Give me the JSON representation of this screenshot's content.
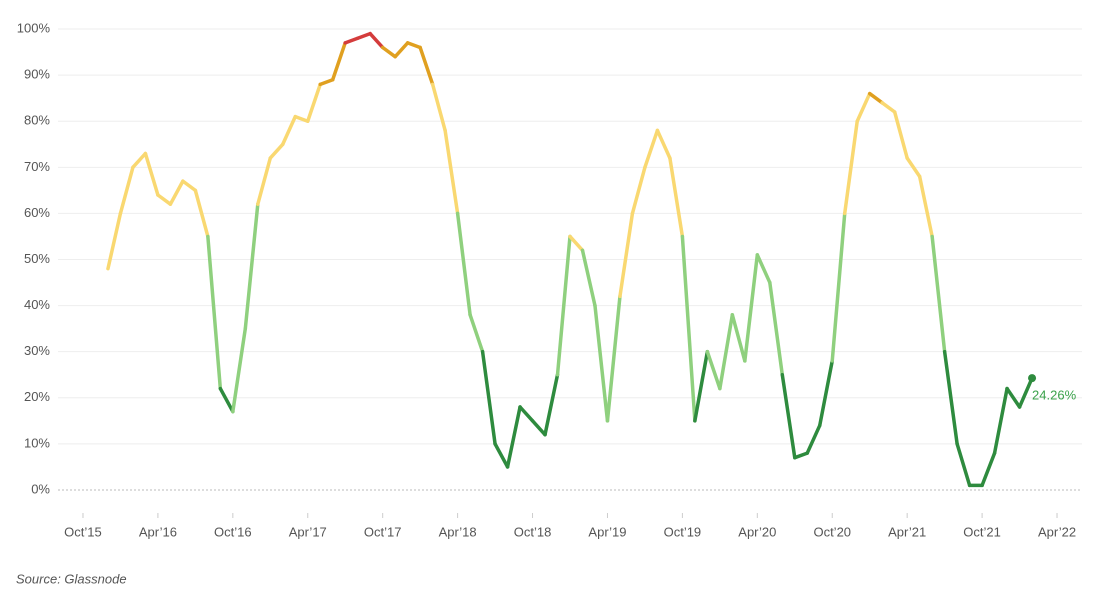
{
  "chart_data": {
    "type": "line",
    "x": [
      "2015-12",
      "2016-01",
      "2016-02",
      "2016-03",
      "2016-04",
      "2016-05",
      "2016-06",
      "2016-07",
      "2016-08",
      "2016-09",
      "2016-10",
      "2016-11",
      "2016-12",
      "2017-01",
      "2017-02",
      "2017-03",
      "2017-04",
      "2017-05",
      "2017-06",
      "2017-07",
      "2017-08",
      "2017-09",
      "2017-10",
      "2017-11",
      "2017-12",
      "2018-01",
      "2018-02",
      "2018-03",
      "2018-04",
      "2018-05",
      "2018-06",
      "2018-07",
      "2018-08",
      "2018-09",
      "2018-10",
      "2018-11",
      "2018-12",
      "2019-01",
      "2019-02",
      "2019-03",
      "2019-04",
      "2019-05",
      "2019-06",
      "2019-07",
      "2019-08",
      "2019-09",
      "2019-10",
      "2019-11",
      "2019-12",
      "2020-01",
      "2020-02",
      "2020-03",
      "2020-04",
      "2020-05",
      "2020-06",
      "2020-07",
      "2020-08",
      "2020-09",
      "2020-10",
      "2020-11",
      "2020-12",
      "2021-01",
      "2021-02",
      "2021-03",
      "2021-04",
      "2021-05",
      "2021-06",
      "2021-07",
      "2021-08",
      "2021-09",
      "2021-10",
      "2021-11",
      "2021-12",
      "2022-01",
      "2022-02"
    ],
    "values": [
      48,
      60,
      70,
      73,
      64,
      62,
      67,
      65,
      55,
      22,
      17,
      35,
      62,
      72,
      75,
      81,
      80,
      88,
      89,
      97,
      98,
      99,
      96,
      94,
      97,
      96,
      88,
      78,
      60,
      38,
      30,
      10,
      5,
      18,
      15,
      12,
      25,
      55,
      52,
      40,
      15,
      42,
      60,
      70,
      78,
      72,
      55,
      15,
      30,
      22,
      38,
      28,
      51,
      45,
      25,
      7,
      8,
      14,
      28,
      60,
      80,
      86,
      84,
      82,
      72,
      68,
      55,
      30,
      10,
      1,
      1,
      8,
      22,
      18,
      24.26
    ],
    "value_labels": {
      "74": "24.26%"
    },
    "color_scale": [
      {
        "below": 25,
        "color": "#2e8b3e"
      },
      {
        "below": 50,
        "color": "#8fd07e"
      },
      {
        "below": 85,
        "color": "#f9d871"
      },
      {
        "below": 97,
        "color": "#e0a020"
      },
      {
        "below": 101,
        "color": "#d43c3c"
      }
    ],
    "xlim": [
      "2015-08",
      "2022-06"
    ],
    "xticks": [
      {
        "value": "2015-10",
        "label": "Oct’15"
      },
      {
        "value": "2016-04",
        "label": "Apr’16"
      },
      {
        "value": "2016-10",
        "label": "Oct’16"
      },
      {
        "value": "2017-04",
        "label": "Apr’17"
      },
      {
        "value": "2017-10",
        "label": "Oct’17"
      },
      {
        "value": "2018-04",
        "label": "Apr’18"
      },
      {
        "value": "2018-10",
        "label": "Oct’18"
      },
      {
        "value": "2019-04",
        "label": "Apr’19"
      },
      {
        "value": "2019-10",
        "label": "Oct’19"
      },
      {
        "value": "2020-04",
        "label": "Apr’20"
      },
      {
        "value": "2020-10",
        "label": "Oct’20"
      },
      {
        "value": "2021-04",
        "label": "Apr’21"
      },
      {
        "value": "2021-10",
        "label": "Oct’21"
      },
      {
        "value": "2022-04",
        "label": "Apr’22"
      }
    ],
    "ylim": [
      -5,
      105
    ],
    "yticks": [
      {
        "value": 0,
        "label": "0%"
      },
      {
        "value": 10,
        "label": "10%"
      },
      {
        "value": 20,
        "label": "20%"
      },
      {
        "value": 30,
        "label": "30%"
      },
      {
        "value": 40,
        "label": "40%"
      },
      {
        "value": 50,
        "label": "50%"
      },
      {
        "value": 60,
        "label": "60%"
      },
      {
        "value": 70,
        "label": "70%"
      },
      {
        "value": 80,
        "label": "80%"
      },
      {
        "value": 90,
        "label": "90%"
      },
      {
        "value": 100,
        "label": "100%"
      }
    ],
    "grid": true,
    "source": "Source: Glassnode"
  }
}
